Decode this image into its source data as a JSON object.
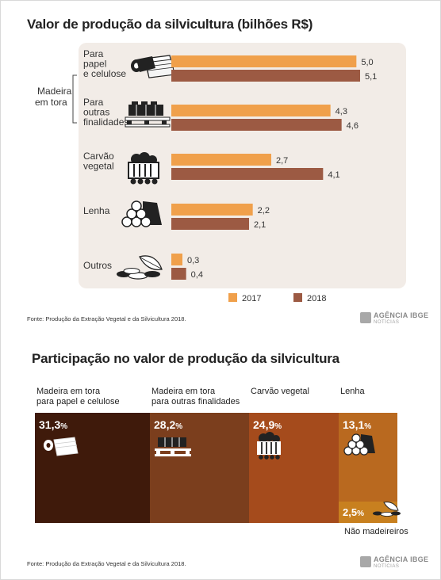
{
  "top": {
    "title": "Valor de produção da silvicultura (bilhões R$)",
    "source": "Fonte: Produção da Extração Vegetal e da Silvicultura 2018.",
    "logo_main": "AGÊNCIA IBGE",
    "logo_sub": "NOTÍCIAS"
  },
  "bottom": {
    "title": "Participação no valor de produção da silvicultura",
    "source": "Fonte: Produção da Extração Vegetal e da Silvicultura 2018.",
    "logo_main": "AGÊNCIA IBGE",
    "logo_sub": "NOTÍCIAS"
  },
  "colors": {
    "y2017": "#f0a04b",
    "y2018": "#9c5a43",
    "panel": "#f2ece7",
    "tree_papel": "#3f1a0b",
    "tree_outras": "#7b3e1d",
    "tree_carvao": "#a54b1c",
    "tree_lenha": "#b9691f",
    "tree_nao": "#c8801f"
  },
  "chart_data": [
    {
      "type": "bar",
      "orientation": "horizontal",
      "title": "Valor de produção da silvicultura (bilhões R$)",
      "group_label": "Madeira em tora",
      "categories": [
        [
          "Para",
          "papel",
          "e celulose"
        ],
        [
          "Para",
          "outras",
          "finalidades"
        ],
        [
          "Carvão",
          "vegetal"
        ],
        [
          "Lenha"
        ],
        [
          "Outros"
        ]
      ],
      "series": [
        {
          "name": "2017",
          "values": [
            5.0,
            4.3,
            2.7,
            2.2,
            0.3
          ],
          "labels": [
            "5,0",
            "4,3",
            "2,7",
            "2,2",
            "0,3"
          ]
        },
        {
          "name": "2018",
          "values": [
            5.1,
            4.6,
            4.1,
            2.1,
            0.4
          ],
          "labels": [
            "5,1",
            "4,6",
            "4,1",
            "2,1",
            "0,4"
          ]
        }
      ],
      "xlim": [
        0,
        5.1
      ],
      "legend": "bottom",
      "grid": false
    },
    {
      "type": "treemap",
      "title": "Participação no valor de produção da silvicultura",
      "items": [
        {
          "name": [
            "Madeira em tora",
            "para papel e celulose"
          ],
          "value": 31.3,
          "label_num": "31,3",
          "label_unit": "%",
          "color": "#3f1a0b"
        },
        {
          "name": [
            "Madeira em tora",
            "para outras finalidades"
          ],
          "value": 28.2,
          "label_num": "28,2",
          "label_unit": "%",
          "color": "#7b3e1d"
        },
        {
          "name": [
            "Carvão vegetal"
          ],
          "value": 24.9,
          "label_num": "24,9",
          "label_unit": "%",
          "color": "#a54b1c"
        },
        {
          "name": [
            "Lenha"
          ],
          "value": 13.1,
          "label_num": "13,1",
          "label_unit": "%",
          "color": "#b9691f"
        },
        {
          "name": [
            "Não madeireiros"
          ],
          "value": 2.5,
          "label_num": "2,5",
          "label_unit": "%",
          "color": "#c8801f"
        }
      ]
    }
  ]
}
